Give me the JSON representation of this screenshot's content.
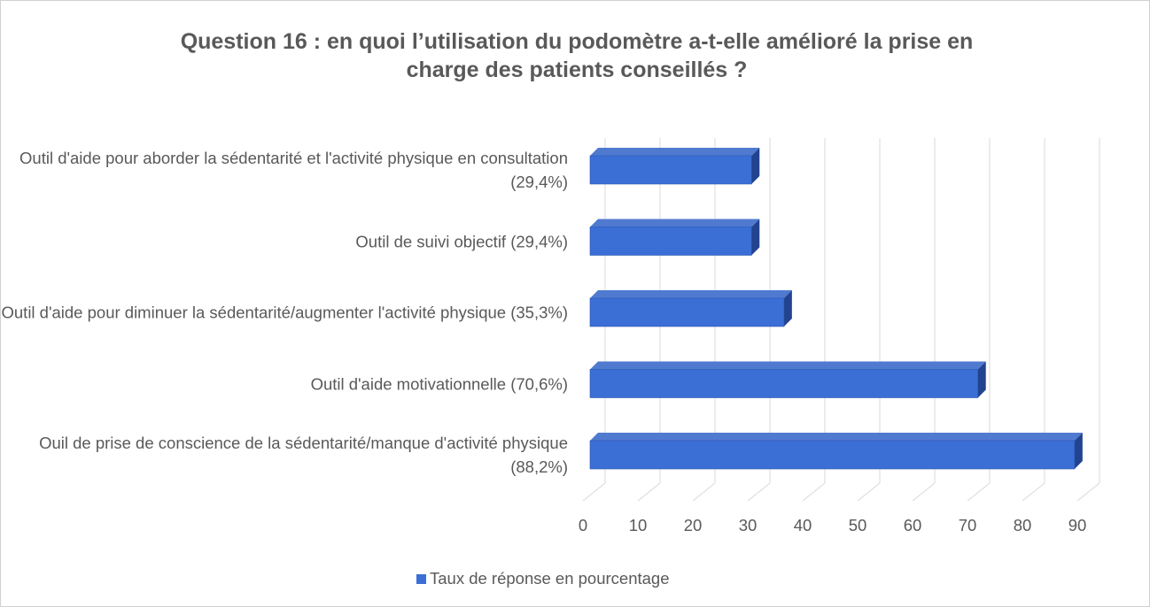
{
  "chart_data": {
    "type": "bar3d_horizontal",
    "title": "Question 16 : en quoi  l’utilisation du podomètre a-t-elle amélioré la prise en charge des patients conseillés ?",
    "categories": [
      "Outil d'aide pour aborder la sédentarité et l'activité physique en consultation (29,4%)",
      "Outil de suivi objectif (29,4%)",
      "Outil d'aide pour diminuer la sédentarité/augmenter l'activité physique (35,3%)",
      "Outil d'aide motivationnelle (70,6%)",
      "Ouil de prise de conscience de la sédentarité/manque d'activité physique (88,2%)"
    ],
    "series": [
      {
        "name": "Taux de réponse en pourcentage",
        "color": "#3b6fd6",
        "values": [
          29.4,
          29.4,
          35.3,
          70.6,
          88.2
        ]
      }
    ],
    "xlim": [
      0,
      90
    ],
    "xticks": [
      0,
      10,
      20,
      30,
      40,
      50,
      60,
      70,
      80,
      90
    ],
    "grid": true,
    "legend": "bottom"
  }
}
